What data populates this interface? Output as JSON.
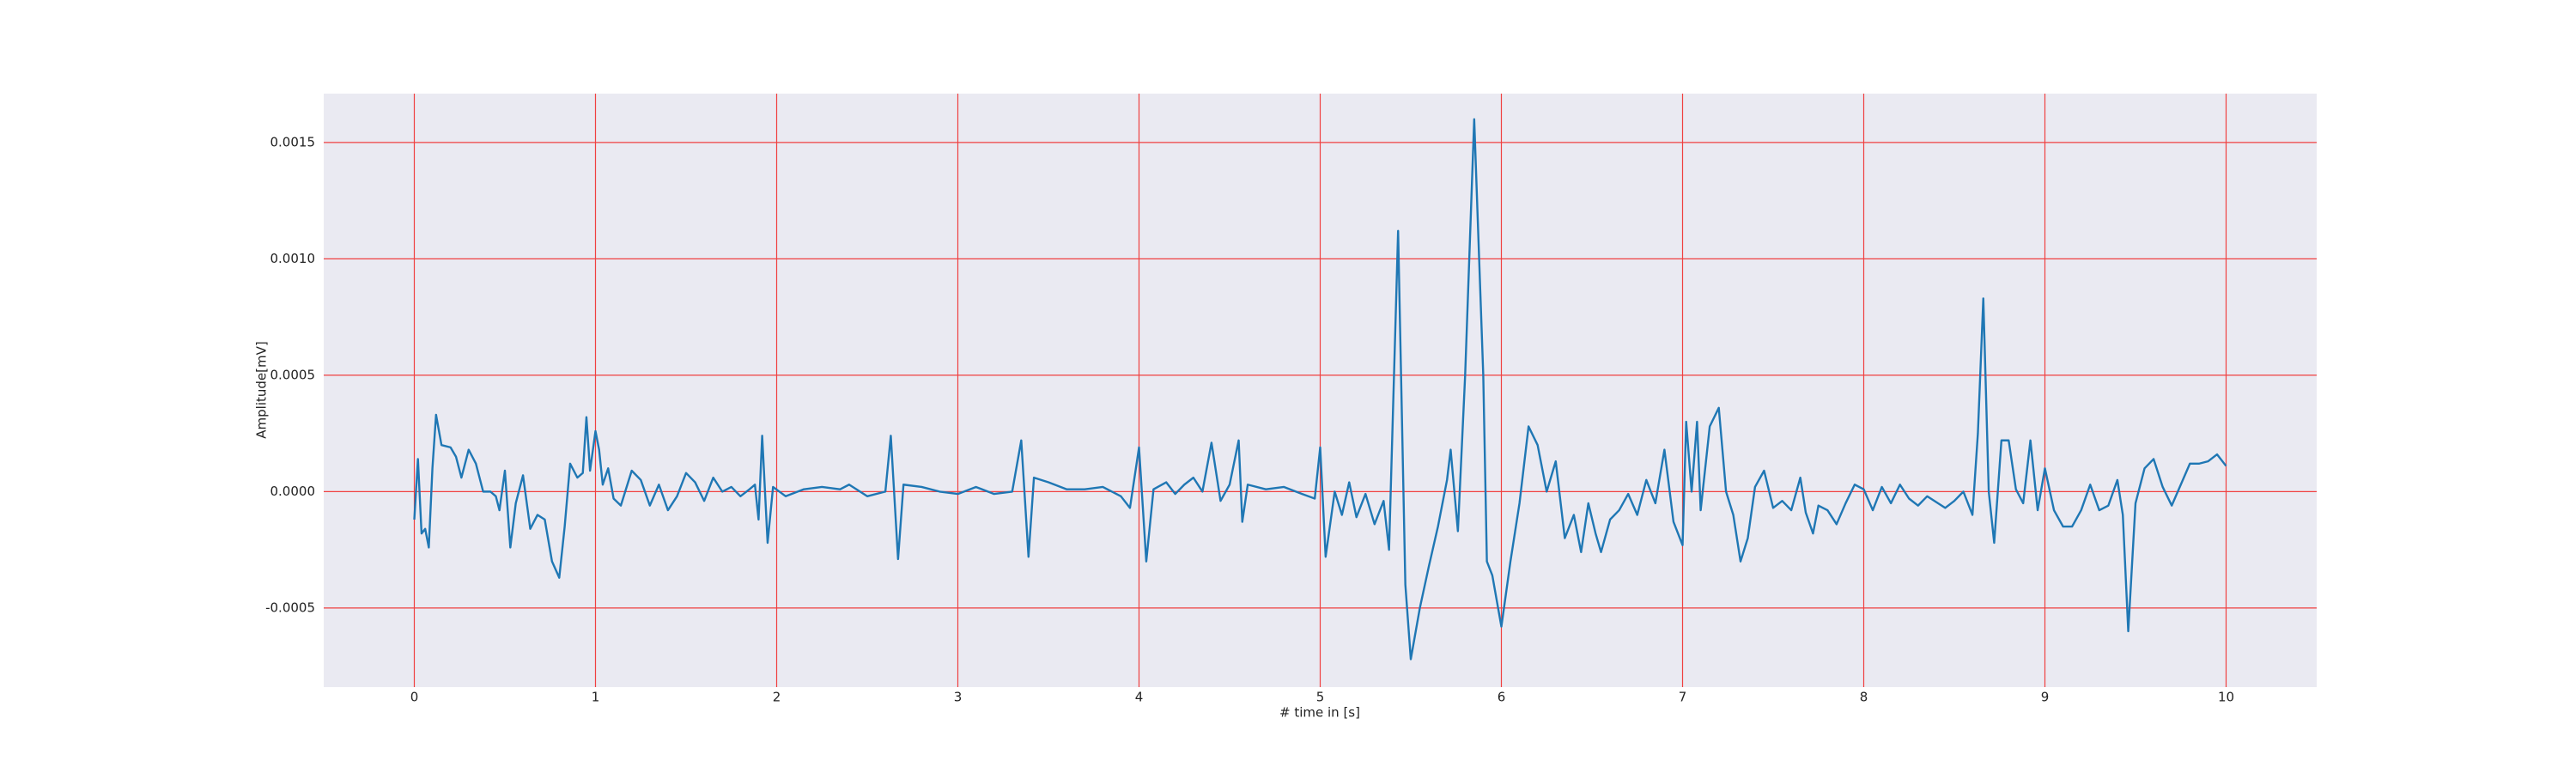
{
  "chart_data": {
    "type": "line",
    "xlabel": "# time in [s]",
    "ylabel": "Amplitude[mV]",
    "color": "#1f77b4",
    "grid": true,
    "grid_color": "#f04040",
    "background": "#eaeaf2",
    "xlim": [
      -0.5,
      10.5
    ],
    "xticks": [
      0,
      1,
      2,
      3,
      4,
      5,
      6,
      7,
      8,
      9,
      10
    ],
    "ylim": [
      -0.00084,
      0.00171
    ],
    "yticks": [
      -0.0005,
      {
        "value": 0,
        "label": "0.0000"
      },
      0.0005,
      {
        "value": 0.001,
        "label": "0.0010"
      },
      {
        "value": 0.0015,
        "label": "0.0015"
      }
    ],
    "x": [
      0,
      0.02,
      0.04,
      0.06,
      0.08,
      0.1,
      0.12,
      0.15,
      0.2,
      0.23,
      0.26,
      0.3,
      0.34,
      0.38,
      0.42,
      0.45,
      0.47,
      0.5,
      0.53,
      0.56,
      0.6,
      0.64,
      0.68,
      0.72,
      0.76,
      0.8,
      0.83,
      0.86,
      0.9,
      0.93,
      0.95,
      0.97,
      1.0,
      1.02,
      1.04,
      1.07,
      1.1,
      1.14,
      1.2,
      1.25,
      1.3,
      1.35,
      1.4,
      1.45,
      1.5,
      1.55,
      1.6,
      1.65,
      1.7,
      1.75,
      1.8,
      1.85,
      1.88,
      1.9,
      1.92,
      1.95,
      1.98,
      2.05,
      2.15,
      2.25,
      2.35,
      2.4,
      2.5,
      2.6,
      2.63,
      2.67,
      2.7,
      2.8,
      2.9,
      3.0,
      3.1,
      3.2,
      3.3,
      3.35,
      3.39,
      3.42,
      3.5,
      3.6,
      3.7,
      3.8,
      3.9,
      3.95,
      4.0,
      4.04,
      4.08,
      4.15,
      4.2,
      4.25,
      4.3,
      4.35,
      4.4,
      4.45,
      4.5,
      4.55,
      4.57,
      4.6,
      4.7,
      4.8,
      4.9,
      4.97,
      5.0,
      5.03,
      5.08,
      5.12,
      5.16,
      5.2,
      5.25,
      5.3,
      5.35,
      5.38,
      5.43,
      5.47,
      5.5,
      5.55,
      5.6,
      5.65,
      5.7,
      5.72,
      5.76,
      5.8,
      5.85,
      5.9,
      5.92,
      5.95,
      6.0,
      6.05,
      6.1,
      6.15,
      6.2,
      6.25,
      6.3,
      6.35,
      6.4,
      6.44,
      6.48,
      6.52,
      6.55,
      6.6,
      6.65,
      6.7,
      6.75,
      6.8,
      6.85,
      6.9,
      6.95,
      7.0,
      7.02,
      7.05,
      7.08,
      7.1,
      7.15,
      7.2,
      7.24,
      7.28,
      7.32,
      7.36,
      7.4,
      7.45,
      7.5,
      7.55,
      7.6,
      7.65,
      7.68,
      7.72,
      7.75,
      7.8,
      7.85,
      7.9,
      7.95,
      8.0,
      8.05,
      8.1,
      8.15,
      8.2,
      8.25,
      8.3,
      8.35,
      8.45,
      8.5,
      8.55,
      8.6,
      8.63,
      8.66,
      8.69,
      8.72,
      8.76,
      8.8,
      8.84,
      8.88,
      8.92,
      8.96,
      9.0,
      9.05,
      9.1,
      9.15,
      9.2,
      9.25,
      9.3,
      9.35,
      9.4,
      9.43,
      9.46,
      9.5,
      9.55,
      9.6,
      9.65,
      9.7,
      9.75,
      9.8,
      9.85,
      9.9,
      9.95,
      10.0
    ],
    "values": [
      -0.00012,
      0.00014,
      -0.00018,
      -0.00016,
      -0.00024,
      0.0001,
      0.00033,
      0.0002,
      0.00019,
      0.00015,
      6e-05,
      0.00018,
      0.00012,
      0,
      0,
      -2e-05,
      -8e-05,
      9e-05,
      -0.00024,
      -5e-05,
      7e-05,
      -0.00016,
      -0.0001,
      -0.00012,
      -0.0003,
      -0.00037,
      -0.00015,
      0.00012,
      6e-05,
      8e-05,
      0.00032,
      9e-05,
      0.00026,
      0.00018,
      3e-05,
      0.0001,
      -3e-05,
      -6e-05,
      9e-05,
      5e-05,
      -6e-05,
      3e-05,
      -8e-05,
      -2e-05,
      8e-05,
      4e-05,
      -4e-05,
      6e-05,
      0,
      2e-05,
      -2e-05,
      1e-05,
      3e-05,
      -0.00012,
      0.00024,
      -0.00022,
      2e-05,
      -2e-05,
      1e-05,
      2e-05,
      1e-05,
      3e-05,
      -2e-05,
      0,
      0.00024,
      -0.00029,
      3e-05,
      2e-05,
      0,
      -1e-05,
      2e-05,
      -1e-05,
      0,
      0.00022,
      -0.00028,
      6e-05,
      4e-05,
      1e-05,
      1e-05,
      2e-05,
      -2e-05,
      -7e-05,
      0.00019,
      -0.0003,
      1e-05,
      4e-05,
      -1e-05,
      3e-05,
      6e-05,
      0,
      0.00021,
      -4e-05,
      3e-05,
      0.00022,
      -0.00013,
      3e-05,
      1e-05,
      2e-05,
      -1e-05,
      -3e-05,
      0.00019,
      -0.00028,
      0,
      -0.0001,
      4e-05,
      -0.00011,
      -1e-05,
      -0.00014,
      -4e-05,
      -0.00025,
      0.00112,
      -0.0004,
      -0.00072,
      -0.0005,
      -0.00032,
      -0.00015,
      5e-05,
      0.00018,
      -0.00017,
      0.0005,
      0.0016,
      0.0005,
      -0.0003,
      -0.00036,
      -0.00058,
      -0.0003,
      -5e-05,
      0.00028,
      0.0002,
      0,
      0.00013,
      -0.0002,
      -0.0001,
      -0.00026,
      -5e-05,
      -0.00018,
      -0.00026,
      -0.00012,
      -8e-05,
      -1e-05,
      -0.0001,
      5e-05,
      -5e-05,
      0.00018,
      -0.00013,
      -0.00023,
      0.0003,
      0,
      0.0003,
      -8e-05,
      0.00028,
      0.00036,
      0,
      -0.0001,
      -0.0003,
      -0.0002,
      2e-05,
      9e-05,
      -7e-05,
      -4e-05,
      -8e-05,
      6e-05,
      -9e-05,
      -0.00018,
      -6e-05,
      -8e-05,
      -0.00014,
      -5e-05,
      3e-05,
      1e-05,
      -8e-05,
      2e-05,
      -5e-05,
      3e-05,
      -3e-05,
      -6e-05,
      -2e-05,
      -7e-05,
      -4e-05,
      0,
      -0.0001,
      0.00025,
      0.00083,
      0,
      -0.00022,
      0.00022,
      0.00022,
      1e-05,
      -5e-05,
      0.00022,
      -8e-05,
      0.0001,
      -8e-05,
      -0.00015,
      -0.00015,
      -8e-05,
      3e-05,
      -8e-05,
      -6e-05,
      5e-05,
      -0.0001,
      -0.0006,
      -5e-05,
      0.0001,
      0.00014,
      2e-05,
      -6e-05,
      3e-05,
      0.00012,
      0.00012,
      0.00013,
      0.00016,
      0.00011
    ]
  }
}
